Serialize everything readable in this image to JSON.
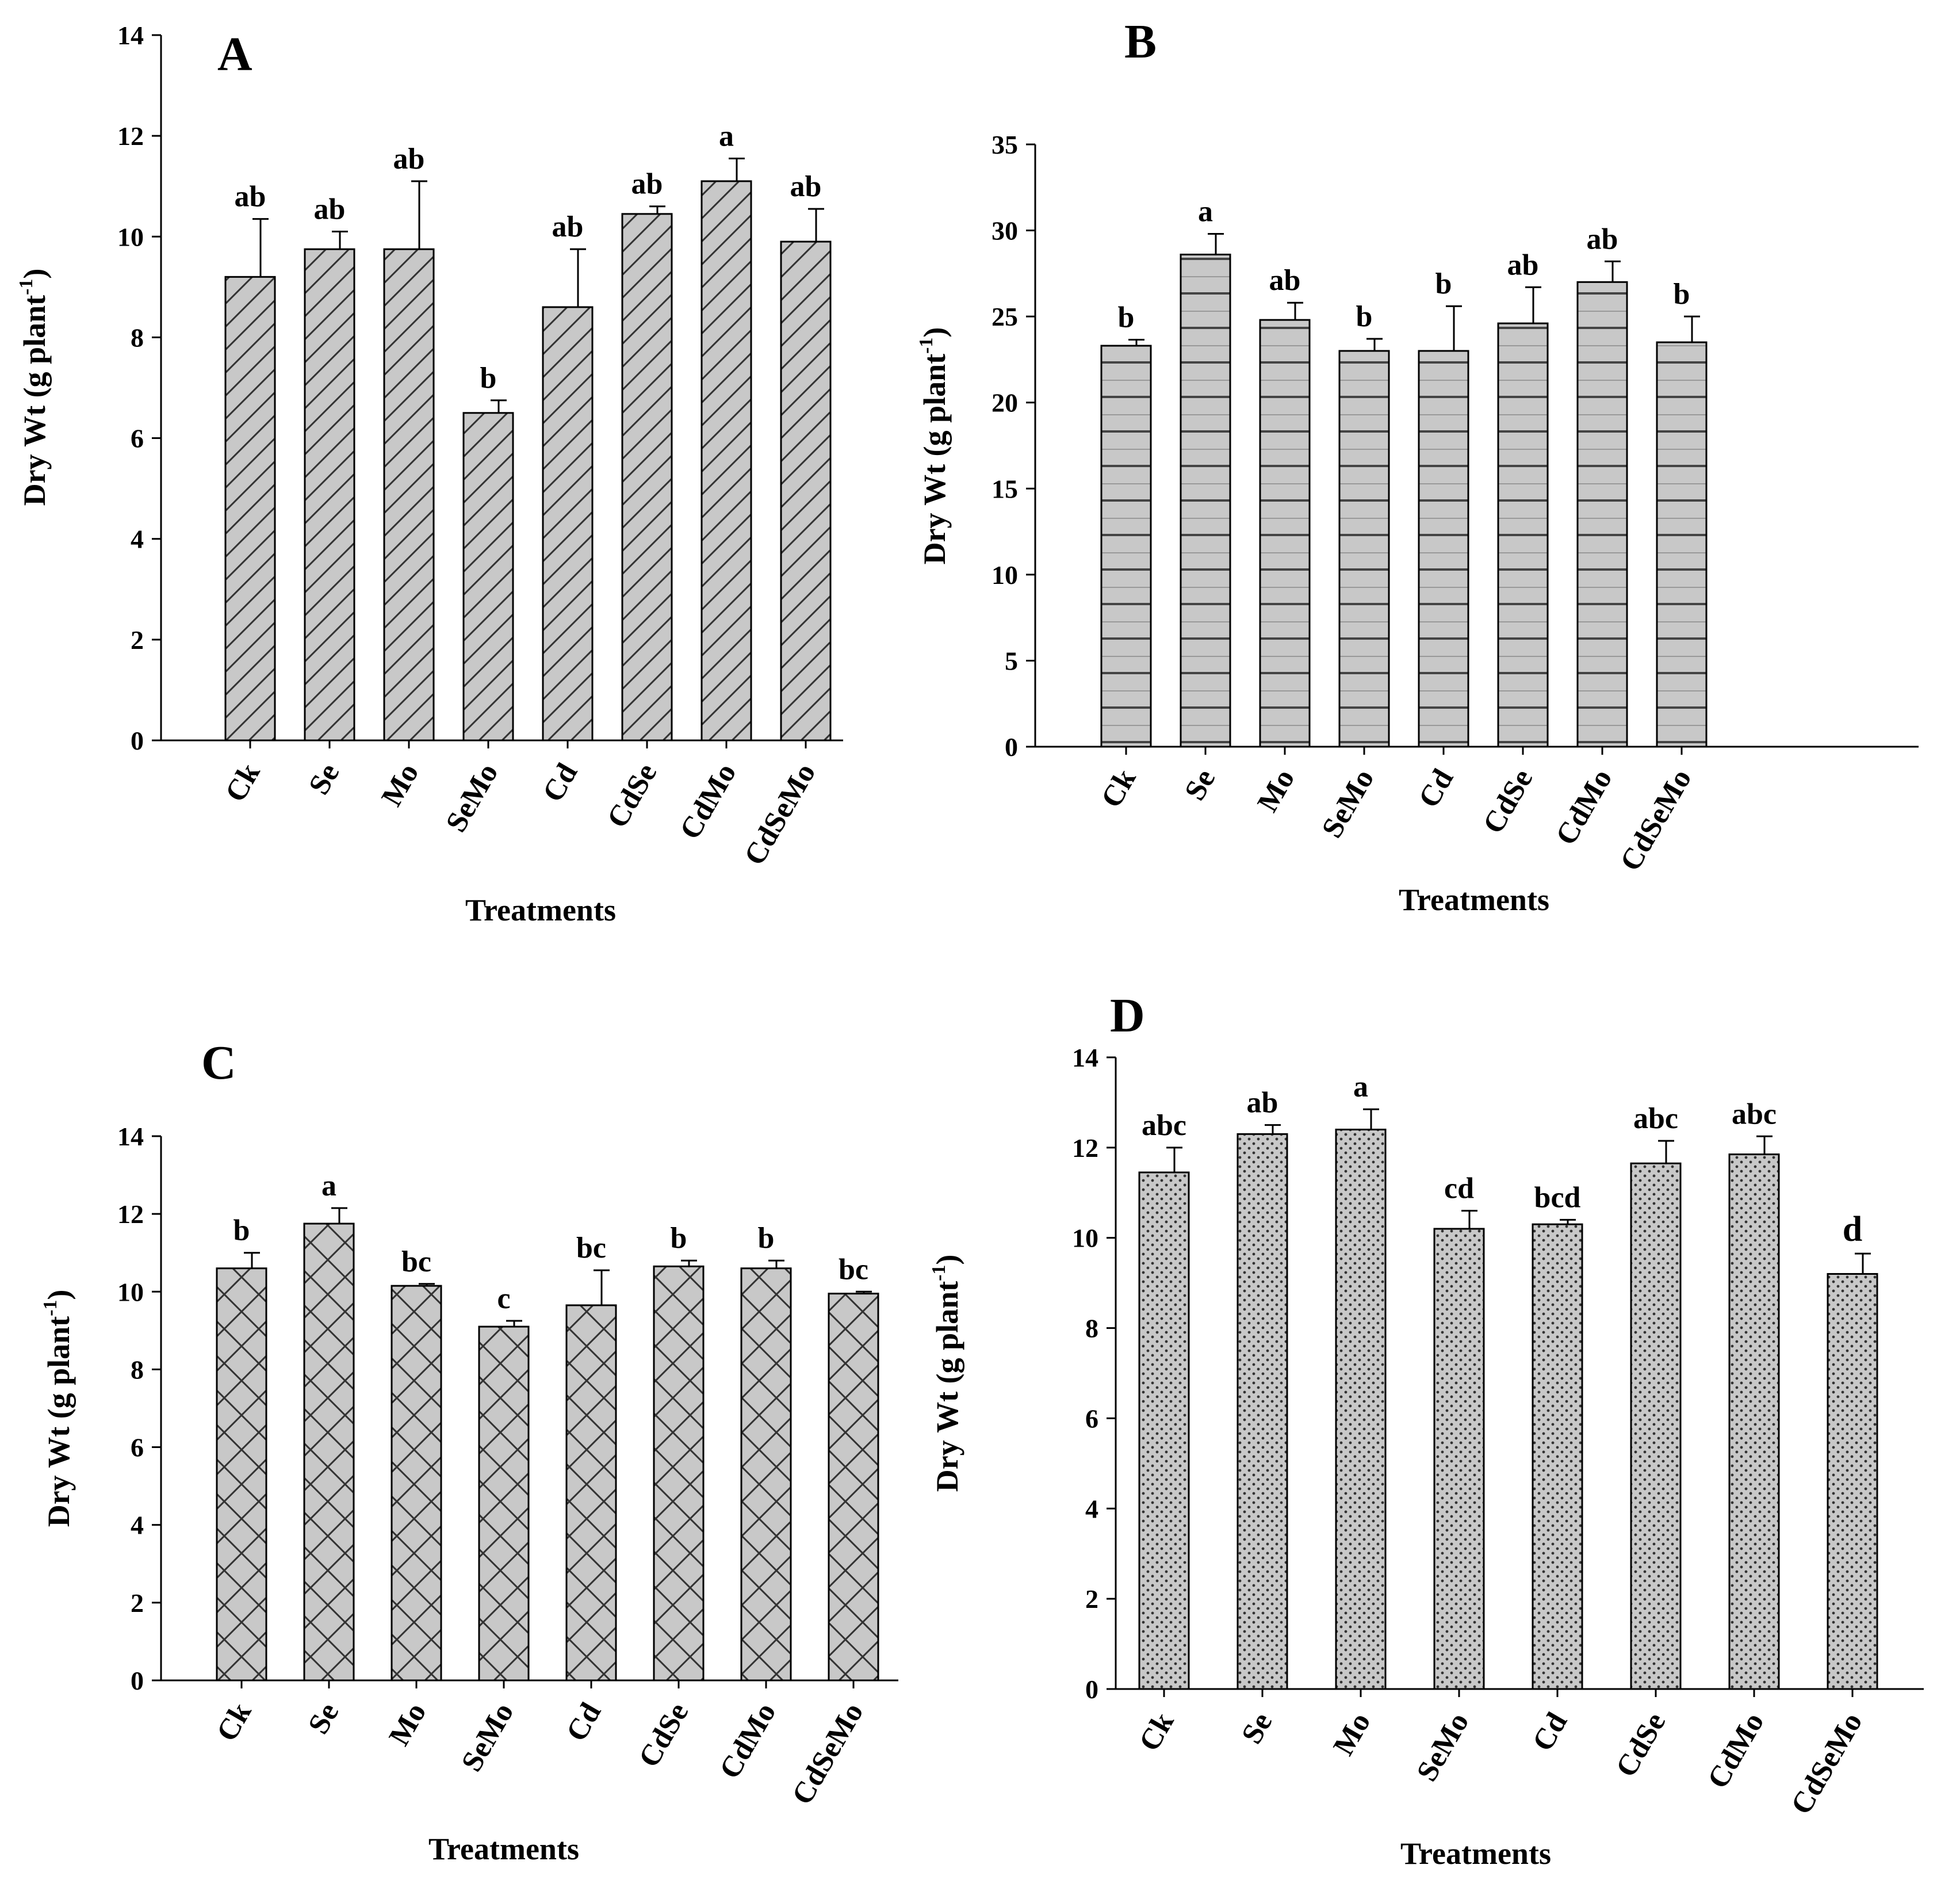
{
  "chart_data": [
    {
      "panel": "A",
      "type": "bar",
      "pattern": "diagonal",
      "categories": [
        "Ck",
        "Se",
        "Mo",
        "SeMo",
        "Cd",
        "CdSe",
        "CdMo",
        "CdSeMo"
      ],
      "values": [
        9.2,
        9.75,
        9.75,
        6.5,
        8.6,
        10.45,
        11.1,
        9.9
      ],
      "errors": [
        1.15,
        0.35,
        1.35,
        0.25,
        1.15,
        0.15,
        0.45,
        0.65
      ],
      "significance": [
        "ab",
        "ab",
        "ab",
        "b",
        "ab",
        "ab",
        "a",
        "ab"
      ],
      "xlabel": "Treatments",
      "ylabel": "Dry Wt (g plant",
      "ylabel_sup": "-1",
      "ylabel_end": ")",
      "ylim": [
        0,
        14
      ],
      "yticks": [
        "0",
        "2",
        "4",
        "6",
        "8",
        "10",
        "12",
        "14"
      ]
    },
    {
      "panel": "B",
      "type": "bar",
      "pattern": "horizontal",
      "categories": [
        "Ck",
        "Se",
        "Mo",
        "SeMo",
        "Cd",
        "CdSe",
        "CdMo",
        "CdSeMo"
      ],
      "values": [
        23.3,
        28.6,
        24.8,
        23.0,
        23.0,
        24.6,
        27.0,
        23.5
      ],
      "errors": [
        0.35,
        1.2,
        1.0,
        0.7,
        2.6,
        2.1,
        1.2,
        1.5
      ],
      "significance": [
        "b",
        "a",
        "ab",
        "b",
        "b",
        "ab",
        "ab",
        "b"
      ],
      "xlabel": "Treatments",
      "ylabel": "Dry Wt (g plant",
      "ylabel_sup": "-1",
      "ylabel_end": ")",
      "ylim": [
        0,
        35
      ],
      "yticks": [
        "0",
        "5",
        "10",
        "15",
        "20",
        "25",
        "30",
        "35"
      ]
    },
    {
      "panel": "C",
      "type": "bar",
      "pattern": "crosshatch",
      "categories": [
        "Ck",
        "Se",
        "Mo",
        "SeMo",
        "Cd",
        "CdSe",
        "CdMo",
        "CdSeMo"
      ],
      "values": [
        10.6,
        11.75,
        10.15,
        9.1,
        9.65,
        10.65,
        10.6,
        9.95
      ],
      "errors": [
        0.4,
        0.4,
        0.05,
        0.15,
        0.9,
        0.15,
        0.2,
        0.05
      ],
      "significance": [
        "b",
        "a",
        "bc",
        "c",
        "bc",
        "b",
        "b",
        "bc"
      ],
      "xlabel": "Treatments",
      "ylabel": "Dry Wt (g plant",
      "ylabel_sup": "-1",
      "ylabel_end": ")",
      "ylim": [
        0,
        14
      ],
      "yticks": [
        "0",
        "2",
        "4",
        "6",
        "8",
        "10",
        "12",
        "14"
      ]
    },
    {
      "panel": "D",
      "type": "bar",
      "pattern": "dots",
      "categories": [
        "Ck",
        "Se",
        "Mo",
        "SeMo",
        "Cd",
        "CdSe",
        "CdMo",
        "CdSeMo"
      ],
      "values": [
        11.45,
        12.3,
        12.4,
        10.2,
        10.3,
        11.65,
        11.85,
        9.2
      ],
      "errors": [
        0.55,
        0.2,
        0.45,
        0.4,
        0.1,
        0.5,
        0.4,
        0.45
      ],
      "significance": [
        "abc",
        "ab",
        "a",
        "cd",
        "bcd",
        "abc",
        "abc",
        "d"
      ],
      "xlabel": "Treatments",
      "ylabel": "Dry Wt (g plant",
      "ylabel_sup": "-1",
      "ylabel_end": ")",
      "ylim": [
        0,
        14
      ],
      "yticks": [
        "0",
        "2",
        "4",
        "6",
        "8",
        "10",
        "12",
        "14"
      ]
    }
  ]
}
